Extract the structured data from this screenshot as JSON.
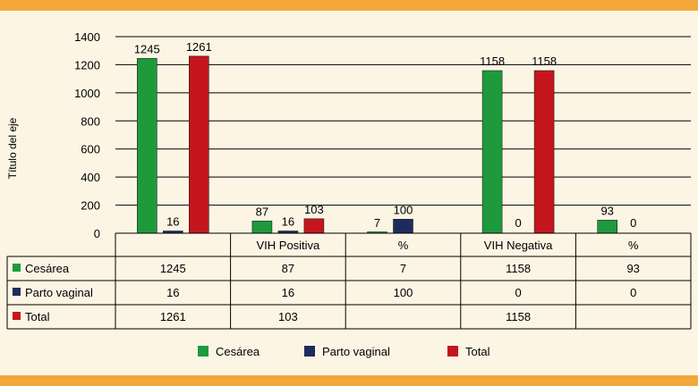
{
  "chart_data": {
    "type": "bar",
    "categories": [
      "",
      "VIH Positiva",
      "%",
      "VIH Negativa",
      "%"
    ],
    "series": [
      {
        "name": "Cesárea",
        "color": "#1e9a3c",
        "values": [
          1245,
          87,
          7,
          1158,
          93
        ],
        "labels": [
          "1245",
          "87",
          "7",
          "1158",
          "93"
        ]
      },
      {
        "name": "Parto vaginal",
        "color": "#1e2c5c",
        "values": [
          16,
          16,
          100,
          0,
          0
        ],
        "labels": [
          "16",
          "16",
          "100",
          "0",
          "0"
        ]
      },
      {
        "name": "Total",
        "color": "#c4161c",
        "values": [
          1261,
          103,
          null,
          1158,
          null
        ],
        "labels": [
          "1261",
          "103",
          "",
          "1158",
          ""
        ]
      }
    ],
    "title": "",
    "xlabel": "",
    "ylabel": "Título del eje",
    "ylim": [
      0,
      1400
    ],
    "yticks": [
      0,
      200,
      400,
      600,
      800,
      1000,
      1200,
      1400
    ],
    "ytick_labels": [
      "0",
      "200",
      "400",
      "600",
      "800",
      "1000",
      "1200",
      "1400"
    ],
    "grid": true,
    "legend_position": "bottom",
    "data_table": true
  }
}
